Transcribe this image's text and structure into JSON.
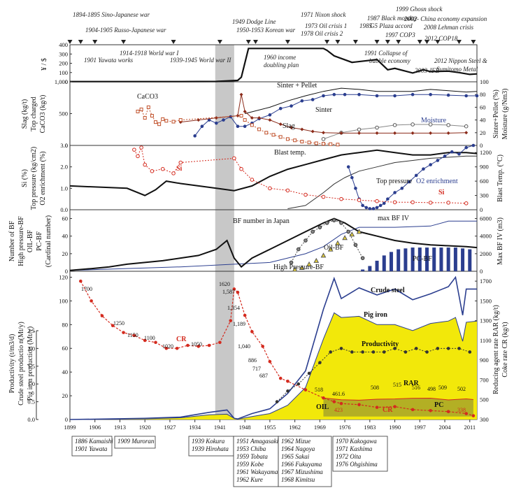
{
  "chart_data": {
    "type": "line",
    "x_axis": {
      "min": 1899,
      "max": 2013,
      "ticks": [
        "1899",
        "1906",
        "1913",
        "1920",
        "1927",
        "1934",
        "1941",
        "1948",
        "1955",
        "1962",
        "1969",
        "1976",
        "1983",
        "1990",
        "1997",
        "2004",
        "2011"
      ]
    },
    "events_top": [
      {
        "year": 1894,
        "text": "1894-1895 Sino-Japanese war"
      },
      {
        "year": 1904,
        "text": "1904-1905  Russo-Japanese war"
      },
      {
        "year": 1949,
        "text": "1949  Dodge Line"
      },
      {
        "year": 1950,
        "text": "1950-1953 Korean war"
      },
      {
        "year": 1971,
        "text": "1971  Nixon shock"
      },
      {
        "year": 1973,
        "text": "1973 Oil crisis 1"
      },
      {
        "year": 1978,
        "text": "1978 Oil crisis 2"
      },
      {
        "year": 1985,
        "text": "1985"
      },
      {
        "year": 1987,
        "text": "1987 Black monday"
      },
      {
        "year": 1985,
        "text": "G5 Plaza accord"
      },
      {
        "year": 1997,
        "text": "1997 COP3"
      },
      {
        "year": 1999,
        "text": "1999  Ghosn shock"
      },
      {
        "year": 2002,
        "text": "2002- China economy expansion"
      },
      {
        "year": 2008,
        "text": "2008 Lehman crisis"
      },
      {
        "year": 2012,
        "text": "2012 COP18"
      }
    ],
    "event_markers": [
      1899,
      1902,
      1906,
      1914,
      1928,
      1941,
      1949,
      1951,
      1960,
      1971,
      1974,
      1979,
      1985,
      1988,
      1991,
      1997,
      1999,
      2002,
      2008,
      2012
    ],
    "panel1": {
      "ylabel": "¥ / $",
      "yticks": [
        "0",
        "100",
        "200",
        "300",
        "400"
      ],
      "annotations": [
        {
          "text": "1901 Yawata works"
        },
        {
          "text": "1914-1918 World war I"
        },
        {
          "text": "1939-1945 World war II"
        },
        {
          "text": "1960 income"
        },
        {
          "text": "doubling plan"
        },
        {
          "text": "1991 Collapse of"
        },
        {
          "text": "bubble economy"
        },
        {
          "text": "2003 JFE"
        },
        {
          "text": "2012  Nippon Steel &"
        },
        {
          "text": "Sumitomo Metal"
        }
      ],
      "series": [
        {
          "x": [
            1899,
            1930,
            1940,
            1946,
            1947,
            1949,
            1970,
            1971,
            1973,
            1978,
            1985,
            1988,
            1990,
            1995,
            1998,
            2000,
            2005,
            2008,
            2011,
            2013
          ],
          "y": [
            2,
            2,
            4,
            15,
            50,
            360,
            360,
            340,
            280,
            210,
            240,
            130,
            145,
            95,
            130,
            110,
            115,
            100,
            80,
            85
          ]
        }
      ]
    },
    "panel2": {
      "ylabel_left": [
        "Slag  (kg/t)",
        "Top charged",
        "CaCO3 (kg/t)"
      ],
      "ylabel_right": [
        "Sinter+Pellet (%)",
        "Moisture  (g/Nm3)"
      ],
      "yticks_left": [
        "0",
        "500",
        "1,000"
      ],
      "yticks_right": [
        "0",
        "20",
        "40",
        "60",
        "80",
        "100"
      ],
      "labels": {
        "caco3": "CaCO3",
        "sinter_pellet": "Sinter + Pellet",
        "sinter": "Sinter",
        "slag": "Slag",
        "moisture": "Moisture"
      },
      "caco3": {
        "x": [
          1918,
          1919,
          1920,
          1921,
          1922,
          1923,
          1924,
          1925,
          1926,
          1928,
          1930,
          1947,
          1948,
          1950,
          1952,
          1954,
          1956,
          1958,
          1960,
          1962,
          1964,
          1966,
          1968,
          1970,
          1972,
          1974
        ],
        "y": [
          800,
          850,
          650,
          900,
          700,
          550,
          500,
          620,
          580,
          560,
          600,
          700,
          600,
          480,
          380,
          300,
          250,
          200,
          150,
          120,
          90,
          70,
          50,
          40,
          30,
          20
        ]
      },
      "slag": {
        "x": [
          1930,
          1935,
          1940,
          1946,
          1947,
          1948,
          1950,
          1952,
          1955,
          1958,
          1961,
          1964,
          1967,
          1970,
          1975,
          1980,
          1985,
          1990,
          1995,
          2000,
          2005,
          2010
        ],
        "y": [
          550,
          600,
          650,
          700,
          1200,
          800,
          650,
          650,
          600,
          500,
          420,
          380,
          330,
          300,
          290,
          290,
          290,
          290,
          290,
          290,
          290,
          300
        ]
      },
      "sinter": {
        "x": [
          1934,
          1936,
          1938,
          1940,
          1942,
          1944,
          1946,
          1948,
          1950,
          1952,
          1955,
          1958,
          1961,
          1964,
          1967,
          1970,
          1973,
          1976,
          1980,
          1985,
          1990,
          1995,
          2000,
          2005,
          2010,
          2013
        ],
        "y": [
          15,
          30,
          40,
          35,
          40,
          45,
          30,
          30,
          35,
          42,
          48,
          58,
          62,
          70,
          72,
          78,
          80,
          80,
          80,
          78,
          78,
          80,
          80,
          79,
          78,
          78
        ]
      },
      "sinter_pellet": {
        "x": [
          1948,
          1955,
          1960,
          1965,
          1970,
          1975,
          1980,
          1985,
          1990,
          1995,
          2000,
          2005,
          2010,
          2013
        ],
        "y": [
          50,
          60,
          70,
          78,
          85,
          90,
          88,
          85,
          85,
          85,
          88,
          86,
          84,
          85
        ]
      },
      "moisture": {
        "x": [
          1970,
          1975,
          1980,
          1985,
          1990,
          1995,
          2000,
          2005,
          2010
        ],
        "y": [
          10,
          20,
          25,
          28,
          32,
          33,
          33,
          32,
          30
        ]
      }
    },
    "panel3": {
      "ylabel_left": [
        "Si (%)",
        "Top pressure (kg/cm2)",
        "O2 enrichment (%)"
      ],
      "ylabel_right": "Blast Temp. (°C)",
      "yticks_left": [
        "0.0",
        "1.0",
        "2.0",
        "3.0"
      ],
      "yticks_right": [
        "0",
        "300",
        "600",
        "900",
        "1200"
      ],
      "labels": {
        "si_left": "Si",
        "blast_temp": "Blast temp.",
        "top_pressure": "Top pressure",
        "o2": "O2 enrichment",
        "si_right": "Si"
      },
      "blast_temp": {
        "x": [
          1899,
          1915,
          1920,
          1923,
          1926,
          1930,
          1940,
          1945,
          1950,
          1955,
          1960,
          1965,
          1970,
          1975,
          1980,
          1985,
          1990,
          1995,
          2000,
          2005,
          2010,
          2013
        ],
        "y": [
          500,
          450,
          300,
          420,
          600,
          550,
          450,
          400,
          500,
          700,
          850,
          950,
          1050,
          1150,
          1200,
          1250,
          1200,
          1150,
          1150,
          1200,
          1200,
          1180
        ]
      },
      "top_pressure": {
        "x": [
          1960,
          1965,
          1970,
          1973,
          1976,
          1980,
          1985,
          1990,
          1995,
          2000,
          2005,
          2010,
          2013
        ],
        "y": [
          0.05,
          0.2,
          0.8,
          1.2,
          1.5,
          1.8,
          2.0,
          2.2,
          2.3,
          2.4,
          2.45,
          2.5,
          2.5
        ]
      },
      "o2": {
        "x": [
          1977,
          1978,
          1979,
          1980,
          1981,
          1982,
          1983,
          1984,
          1985,
          1986,
          1987,
          1988,
          1990,
          1992,
          1994,
          1996,
          1998,
          2000,
          2002,
          2004,
          2006,
          2008,
          2010,
          2012
        ],
        "y": [
          2.0,
          1.5,
          1.0,
          0.5,
          0.2,
          0.1,
          0.05,
          0.05,
          0.1,
          0.2,
          0.3,
          0.5,
          0.8,
          1.0,
          1.3,
          1.6,
          1.9,
          2.1,
          2.3,
          2.5,
          2.7,
          2.6,
          2.9,
          3.0
        ]
      },
      "si": {
        "x": [
          1917,
          1918,
          1919,
          1920,
          1922,
          1925,
          1928,
          1930,
          1945,
          1947,
          1950,
          1955,
          1960,
          1965,
          1970,
          1975,
          1980,
          1985,
          1990,
          1995,
          2000,
          2005,
          2010
        ],
        "y": [
          2.8,
          2.5,
          2.9,
          2.1,
          1.8,
          1.9,
          1.7,
          2.2,
          2.4,
          1.9,
          1.4,
          1.0,
          0.9,
          0.7,
          0.6,
          0.5,
          0.45,
          0.4,
          0.35,
          0.35,
          0.33,
          0.33,
          0.3
        ]
      }
    },
    "panel4": {
      "ylabel_left": [
        "Number of BF",
        "High pressure-BF",
        "OIL-BF",
        "PC-BF",
        "(Cardinal number)"
      ],
      "ylabel_right": "Max BF IV (m3)",
      "yticks_left": [
        "0",
        "20",
        "40",
        "60"
      ],
      "yticks_right": [
        "0",
        "2000",
        "4000",
        "6000"
      ],
      "labels": {
        "bf_number": "BF number in Japan",
        "max_bf_iv": "max BF IV",
        "oil_bf": "Oil-BF",
        "high_pressure_bf": "High Pressure-BF",
        "pc_bf": "PC-BF"
      },
      "bf_number": {
        "x": [
          1899,
          1905,
          1910,
          1915,
          1920,
          1925,
          1930,
          1935,
          1940,
          1943,
          1945,
          1947,
          1950,
          1955,
          1960,
          1965,
          1970,
          1973,
          1976,
          1980,
          1985,
          1990,
          1995,
          2000,
          2005,
          2010,
          2013
        ],
        "y": [
          1,
          3,
          5,
          8,
          10,
          12,
          15,
          18,
          25,
          35,
          15,
          5,
          15,
          25,
          35,
          45,
          55,
          60,
          55,
          45,
          40,
          35,
          32,
          30,
          29,
          28,
          27
        ]
      },
      "max_bf_iv": {
        "x": [
          1899,
          1930,
          1945,
          1955,
          1960,
          1965,
          1970,
          1975,
          1980,
          1990,
          2000,
          2005,
          2010,
          2013
        ],
        "y": [
          100,
          500,
          800,
          1000,
          1500,
          2000,
          2800,
          4200,
          5000,
          5000,
          5150,
          5700,
          5700,
          5700
        ]
      },
      "oil_bf": {
        "x": [
          1961,
          1963,
          1965,
          1967,
          1969,
          1971,
          1973,
          1975,
          1977,
          1979,
          1981
        ],
        "y": [
          10,
          25,
          35,
          45,
          50,
          55,
          58,
          55,
          45,
          30,
          15
        ]
      },
      "high_pressure_bf": {
        "x": [
          1962,
          1964,
          1966,
          1968,
          1970,
          1972,
          1974,
          1976,
          1978,
          1980
        ],
        "y": [
          2,
          4,
          8,
          12,
          18,
          25,
          32,
          38,
          42,
          45
        ]
      },
      "pc_bf": {
        "x": [
          1981,
          1983,
          1985,
          1987,
          1989,
          1991,
          1993,
          1995,
          1997,
          1999,
          2001,
          2003,
          2005,
          2007,
          2009,
          2011
        ],
        "y": [
          2,
          6,
          12,
          18,
          22,
          25,
          26,
          27,
          27,
          27,
          27,
          27,
          27,
          27,
          26,
          25
        ]
      }
    },
    "panel5": {
      "ylabel_left": [
        "Productivity  (t/m3/d)",
        "Crude steel productio n(Mt/y)",
        "Pig iron production  (Mt/y)"
      ],
      "ylabel_right": [
        "Reducing agent rate RAR (kg/t)",
        "Coke rate CR  (kg/t)"
      ],
      "yticks_left_a": [
        "0.0",
        "0.5",
        "1.0",
        "1.5",
        "2.0",
        "2.5"
      ],
      "yticks_left_b": [
        "0",
        "20",
        "40",
        "60",
        "80",
        "100",
        "120"
      ],
      "yticks_right": [
        "300",
        "500",
        "700",
        "900",
        "1100",
        "1300",
        "1500",
        "1700"
      ],
      "labels": {
        "crude_steel": "Crude steel",
        "pig_iron": "Pig iron",
        "productivity": "Productivity",
        "rar": "RAR",
        "oil": "OIL",
        "pc": "PC",
        "cr": "CR",
        "cr_red": "CR"
      },
      "cr_labels": [
        "1700",
        "1250",
        "1150",
        "1100",
        "1020",
        "1050",
        "1620",
        "1,587",
        "1,354",
        "1,189",
        "1,040",
        "886",
        "717",
        "687",
        "518",
        "461.6",
        "423",
        "508",
        "515",
        "516",
        "498",
        "509",
        "502",
        "338"
      ],
      "crude_steel": {
        "x": [
          1899,
          1910,
          1920,
          1930,
          1938,
          1943,
          1945,
          1946,
          1950,
          1955,
          1960,
          1965,
          1970,
          1973,
          1975,
          1980,
          1985,
          1990,
          1995,
          2000,
          2005,
          2007,
          2009,
          2010,
          2013
        ],
        "y": [
          0,
          0.5,
          1,
          2,
          6,
          8,
          1,
          0.5,
          5,
          9,
          22,
          41,
          93,
          119,
          102,
          111,
          105,
          110,
          101,
          106,
          112,
          120,
          88,
          110,
          110
        ]
      },
      "pig_iron": {
        "x": [
          1899,
          1910,
          1920,
          1930,
          1938,
          1943,
          1945,
          1946,
          1950,
          1955,
          1960,
          1965,
          1970,
          1973,
          1975,
          1980,
          1985,
          1990,
          1995,
          2000,
          2005,
          2007,
          2009,
          2010,
          2013
        ],
        "y": [
          0,
          0.3,
          0.6,
          1.5,
          4,
          4.5,
          1,
          0.3,
          2.5,
          5,
          12,
          27,
          68,
          90,
          86,
          87,
          80,
          80,
          75,
          81,
          83,
          86,
          66,
          82,
          83
        ]
      },
      "productivity": {
        "x": [
          1957,
          1960,
          1963,
          1966,
          1969,
          1972,
          1975,
          1978,
          1981,
          1984,
          1987,
          1990,
          1993,
          1996,
          1999,
          2002,
          2005,
          2008,
          2011
        ],
        "y": [
          0.5,
          0.8,
          1.0,
          1.3,
          1.6,
          1.9,
          2.0,
          1.9,
          1.9,
          1.9,
          1.9,
          2.0,
          1.9,
          2.0,
          1.9,
          2.0,
          2.0,
          2.0,
          1.9
        ]
      },
      "cr": {
        "x": [
          1902,
          1905,
          1908,
          1911,
          1914,
          1917,
          1920,
          1923,
          1926,
          1929,
          1932,
          1935,
          1938,
          1941,
          1944,
          1945,
          1946,
          1948,
          1950,
          1953,
          1955,
          1958,
          1960,
          1965,
          1970,
          1973,
          1975,
          1980,
          1985,
          1990,
          1995,
          2000,
          2005,
          2010,
          2012
        ],
        "y": [
          1700,
          1500,
          1350,
          1250,
          1180,
          1150,
          1100,
          1080,
          1020,
          1020,
          1050,
          1040,
          1050,
          1080,
          1300,
          1620,
          1587,
          1354,
          1189,
          1040,
          886,
          717,
          687,
          600,
          518,
          480,
          461.6,
          450,
          423,
          430,
          400,
          390,
          380,
          360,
          338
        ]
      },
      "rar": {
        "x": [
          1970,
          1975,
          1980,
          1985,
          1990,
          1995,
          2000,
          2005,
          2010,
          2012
        ],
        "y": [
          518,
          500,
          495,
          505,
          508,
          515,
          516,
          498,
          509,
          502
        ]
      }
    },
    "bottom_boxes": [
      [
        "1886  Kamaishi",
        "1901   Yawata"
      ],
      [
        "1909  Muroran"
      ],
      [
        "1939  Kokura",
        "1939  Hirohata"
      ],
      [
        "1951 Amagasaki",
        "1953 Chiba",
        "1959 Tobata",
        "1959 Kobe",
        "1961 Wakayama",
        "1962 Kure"
      ],
      [
        "1962  Mizue",
        "1964 Nagoya",
        "1965 Sakai",
        "1966 Fukuyama",
        "1967 Mizushima",
        "1968 Kimitsu"
      ],
      [
        "1970 Kakogawa",
        "1971 Kashima",
        "1972 Oita",
        "1976 Ohgishima"
      ]
    ]
  }
}
